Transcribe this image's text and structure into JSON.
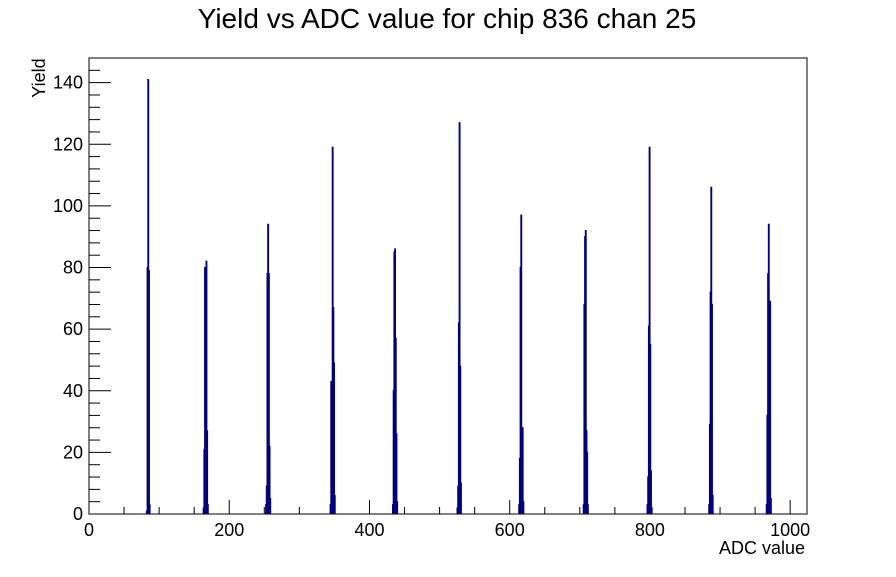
{
  "chart_data": {
    "type": "histogram",
    "title": "Yield vs ADC value for chip 836 chan 25",
    "xlabel": "ADC value",
    "ylabel": "Yield",
    "xlim": [
      0,
      1024
    ],
    "ylim": [
      0,
      148
    ],
    "x_ticks": [
      0,
      200,
      400,
      600,
      800,
      1000
    ],
    "x_tick_labels": [
      "0",
      "200",
      "400",
      "600",
      "800",
      "1000"
    ],
    "y_ticks": [
      0,
      20,
      40,
      60,
      80,
      100,
      120,
      140
    ],
    "y_tick_labels": [
      "0",
      "20",
      "40",
      "60",
      "80",
      "100",
      "120",
      "140"
    ],
    "line_color": "#000080",
    "bin_width": 1,
    "bins": [
      [
        82,
        1
      ],
      [
        83,
        80
      ],
      [
        84,
        141
      ],
      [
        85,
        79
      ],
      [
        86,
        3
      ],
      [
        163,
        2
      ],
      [
        164,
        21
      ],
      [
        165,
        80
      ],
      [
        166,
        74
      ],
      [
        167,
        82
      ],
      [
        168,
        27
      ],
      [
        169,
        3
      ],
      [
        252,
        3
      ],
      [
        253,
        9
      ],
      [
        254,
        78
      ],
      [
        255,
        94
      ],
      [
        256,
        78
      ],
      [
        257,
        22
      ],
      [
        258,
        5
      ],
      [
        344,
        3
      ],
      [
        345,
        43
      ],
      [
        346,
        36
      ],
      [
        347,
        119
      ],
      [
        348,
        67
      ],
      [
        349,
        49
      ],
      [
        350,
        6
      ],
      [
        433,
        3
      ],
      [
        434,
        40
      ],
      [
        435,
        85
      ],
      [
        436,
        86
      ],
      [
        437,
        57
      ],
      [
        438,
        26
      ],
      [
        439,
        4
      ],
      [
        525,
        2
      ],
      [
        526,
        9
      ],
      [
        527,
        62
      ],
      [
        528,
        127
      ],
      [
        529,
        48
      ],
      [
        530,
        10
      ],
      [
        613,
        3
      ],
      [
        614,
        18
      ],
      [
        615,
        80
      ],
      [
        616,
        97
      ],
      [
        617,
        18
      ],
      [
        618,
        28
      ],
      [
        619,
        4
      ],
      [
        705,
        3
      ],
      [
        706,
        68
      ],
      [
        707,
        90
      ],
      [
        708,
        92
      ],
      [
        709,
        27
      ],
      [
        710,
        20
      ],
      [
        711,
        3
      ],
      [
        796,
        3
      ],
      [
        797,
        12
      ],
      [
        798,
        61
      ],
      [
        799,
        119
      ],
      [
        800,
        55
      ],
      [
        801,
        14
      ],
      [
        802,
        2
      ],
      [
        884,
        3
      ],
      [
        885,
        29
      ],
      [
        886,
        72
      ],
      [
        887,
        106
      ],
      [
        888,
        68
      ],
      [
        889,
        6
      ],
      [
        966,
        3
      ],
      [
        967,
        32
      ],
      [
        968,
        78
      ],
      [
        969,
        94
      ],
      [
        970,
        49
      ],
      [
        971,
        69
      ],
      [
        972,
        5
      ]
    ]
  }
}
